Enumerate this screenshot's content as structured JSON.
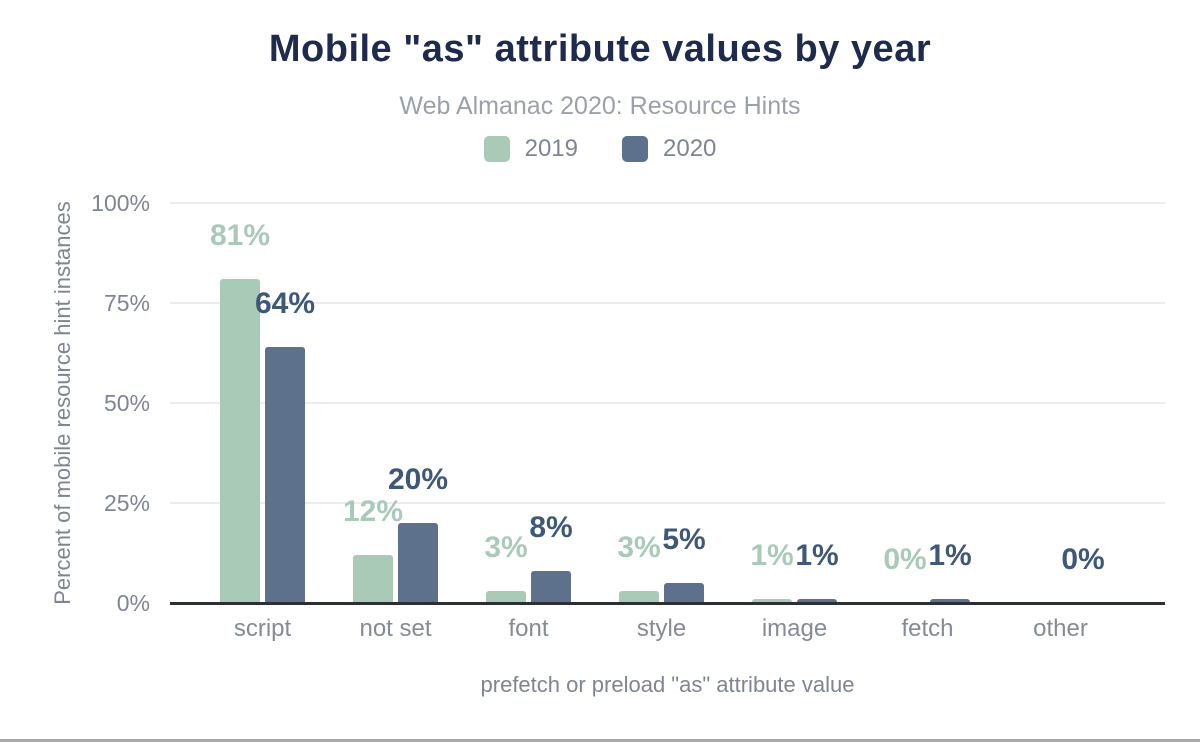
{
  "chart_data": {
    "type": "bar",
    "title": "Mobile \"as\" attribute values by year",
    "subtitle": "Web Almanac 2020: Resource Hints",
    "xlabel": "prefetch or preload \"as\" attribute value",
    "ylabel": "Percent of mobile resource hint instances",
    "categories": [
      "script",
      "not set",
      "font",
      "style",
      "image",
      "fetch",
      "other"
    ],
    "series": [
      {
        "name": "2019",
        "color": "#a8cab7",
        "label_color": "#a8cab7",
        "values": [
          81,
          12,
          3,
          3,
          1,
          0,
          null
        ]
      },
      {
        "name": "2020",
        "color": "#5d718c",
        "label_color": "#3f5878",
        "values": [
          64,
          20,
          8,
          5,
          1,
          1,
          0
        ]
      }
    ],
    "value_suffix": "%",
    "ylim": [
      0,
      100
    ],
    "y_ticks": [
      {
        "label": "100%",
        "value": 100
      },
      {
        "label": "75%",
        "value": 75
      },
      {
        "label": "50%",
        "value": 50
      },
      {
        "label": "25%",
        "value": 25
      },
      {
        "label": "0%",
        "value": 0
      }
    ],
    "grid": "horizontal",
    "legend_position": "top-center",
    "colors": {
      "title": "#1e2b4d",
      "subtitle": "#9aa1ab",
      "tick_text": "#7d8594",
      "category_text": "#848b97",
      "axis_title_text": "#7d8594",
      "legend_text": "#7d8594",
      "gridline": "#ececee",
      "axis_line": "#2c3033",
      "background": "#ffffff"
    }
  }
}
